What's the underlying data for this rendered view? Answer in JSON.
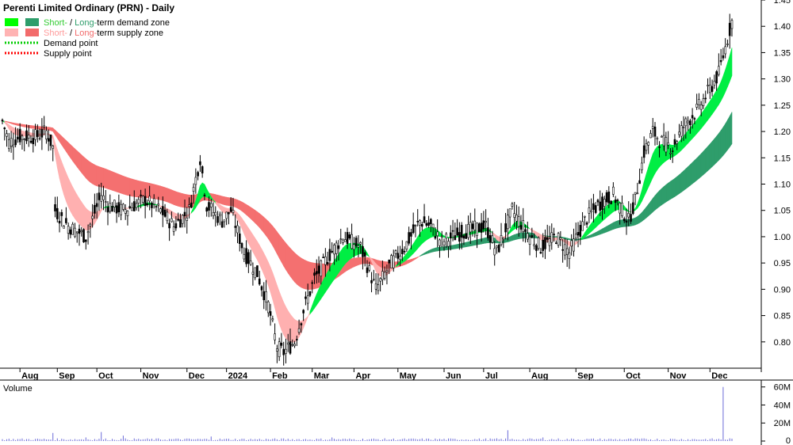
{
  "chart_data": {
    "type": "candlestick",
    "title": "Perenti Limited Ordinary (PRN) - Daily",
    "legend": [
      {
        "swatches": [
          "#00ff00",
          "#2e9d6b"
        ],
        "parts": [
          {
            "text": "Short-",
            "color": "#33cc33"
          },
          {
            "text": " / ",
            "color": "#000000"
          },
          {
            "text": "Long-",
            "color": "#2e9d6b"
          },
          {
            "text": "term demand zone",
            "color": "#000000"
          }
        ],
        "line": false
      },
      {
        "swatches": [
          "#ffb3b3",
          "#f26b6b"
        ],
        "parts": [
          {
            "text": "Short-",
            "color": "#ff9a9a"
          },
          {
            "text": " / ",
            "color": "#000000"
          },
          {
            "text": "Long-",
            "color": "#f26b6b"
          },
          {
            "text": "term supply zone",
            "color": "#000000"
          }
        ],
        "line": false
      },
      {
        "swatches": [
          "#00cc00"
        ],
        "parts": [
          {
            "text": "Demand point",
            "color": "#000000"
          }
        ],
        "line": true
      },
      {
        "swatches": [
          "#ff0000"
        ],
        "parts": [
          {
            "text": "Supply point",
            "color": "#000000"
          }
        ],
        "line": true
      }
    ],
    "price_axis": {
      "min": 0.75,
      "max": 1.45,
      "ticks": [
        "0.80",
        "0.85",
        "0.90",
        "0.95",
        "1.00",
        "1.05",
        "1.10",
        "1.15",
        "1.20",
        "1.25",
        "1.30",
        "1.35",
        "1.40",
        "1.45"
      ]
    },
    "volume_axis": {
      "label": "Volume",
      "max": 65,
      "ticks": [
        {
          "v": 0,
          "label": "0"
        },
        {
          "v": 20,
          "label": "20M"
        },
        {
          "v": 40,
          "label": "40M"
        },
        {
          "v": 60,
          "label": "60M"
        }
      ]
    },
    "x_labels": [
      "Aug",
      "Sep",
      "Oct",
      "Nov",
      "Dec",
      "2024",
      "Feb",
      "Mar",
      "Apr",
      "May",
      "Jun",
      "Jul",
      "Aug",
      "Sep",
      "Oct",
      "Nov",
      "Dec"
    ],
    "x_label_index": [
      8,
      25,
      43,
      63,
      84,
      102,
      122,
      141,
      160,
      180,
      201,
      219,
      240,
      261,
      283,
      303,
      322
    ],
    "n_days": 333,
    "price_path": [
      [
        0,
        1.22
      ],
      [
        3,
        1.18
      ],
      [
        8,
        1.19
      ],
      [
        15,
        1.19
      ],
      [
        20,
        1.2
      ],
      [
        23,
        1.17
      ],
      [
        24,
        1.05
      ],
      [
        30,
        1.02
      ],
      [
        38,
        1.0
      ],
      [
        45,
        1.08
      ],
      [
        48,
        1.06
      ],
      [
        55,
        1.05
      ],
      [
        65,
        1.07
      ],
      [
        72,
        1.05
      ],
      [
        78,
        1.02
      ],
      [
        85,
        1.05
      ],
      [
        90,
        1.15
      ],
      [
        93,
        1.06
      ],
      [
        100,
        1.03
      ],
      [
        104,
        1.05
      ],
      [
        110,
        0.97
      ],
      [
        116,
        0.93
      ],
      [
        121,
        0.87
      ],
      [
        125,
        0.79
      ],
      [
        128,
        0.78
      ],
      [
        133,
        0.8
      ],
      [
        137,
        0.86
      ],
      [
        142,
        0.92
      ],
      [
        148,
        0.96
      ],
      [
        155,
        1.0
      ],
      [
        163,
        0.98
      ],
      [
        170,
        0.9
      ],
      [
        177,
        0.95
      ],
      [
        183,
        0.98
      ],
      [
        190,
        1.03
      ],
      [
        195,
        1.02
      ],
      [
        200,
        0.99
      ],
      [
        210,
        1.01
      ],
      [
        220,
        1.02
      ],
      [
        225,
        0.97
      ],
      [
        232,
        1.05
      ],
      [
        240,
        1.0
      ],
      [
        245,
        0.98
      ],
      [
        252,
        1.0
      ],
      [
        258,
        0.97
      ],
      [
        265,
        1.03
      ],
      [
        271,
        1.06
      ],
      [
        278,
        1.08
      ],
      [
        282,
        1.05
      ],
      [
        285,
        1.03
      ],
      [
        288,
        1.07
      ],
      [
        292,
        1.16
      ],
      [
        296,
        1.2
      ],
      [
        300,
        1.18
      ],
      [
        305,
        1.17
      ],
      [
        310,
        1.21
      ],
      [
        316,
        1.24
      ],
      [
        322,
        1.28
      ],
      [
        326,
        1.31
      ],
      [
        329,
        1.36
      ],
      [
        332,
        1.41
      ]
    ],
    "volume_path": [
      [
        0,
        2
      ],
      [
        332,
        2
      ]
    ],
    "volume_spikes": [
      [
        23,
        9
      ],
      [
        45,
        10
      ],
      [
        55,
        6
      ],
      [
        95,
        5
      ],
      [
        230,
        12
      ],
      [
        328,
        60
      ],
      [
        331,
        3
      ],
      [
        38,
        4
      ],
      [
        150,
        4
      ],
      [
        246,
        4
      ]
    ],
    "colors": {
      "short_demand": "#00ee44",
      "long_demand": "#2e9d6b",
      "short_supply": "#ffb0b0",
      "long_supply": "#f47070",
      "mid_overlap_supply": "#f26a1b",
      "candle": "#000000",
      "volume": "#6a6ad8",
      "volume_label": "#5b3fa8",
      "grid": "#cccccc"
    }
  }
}
